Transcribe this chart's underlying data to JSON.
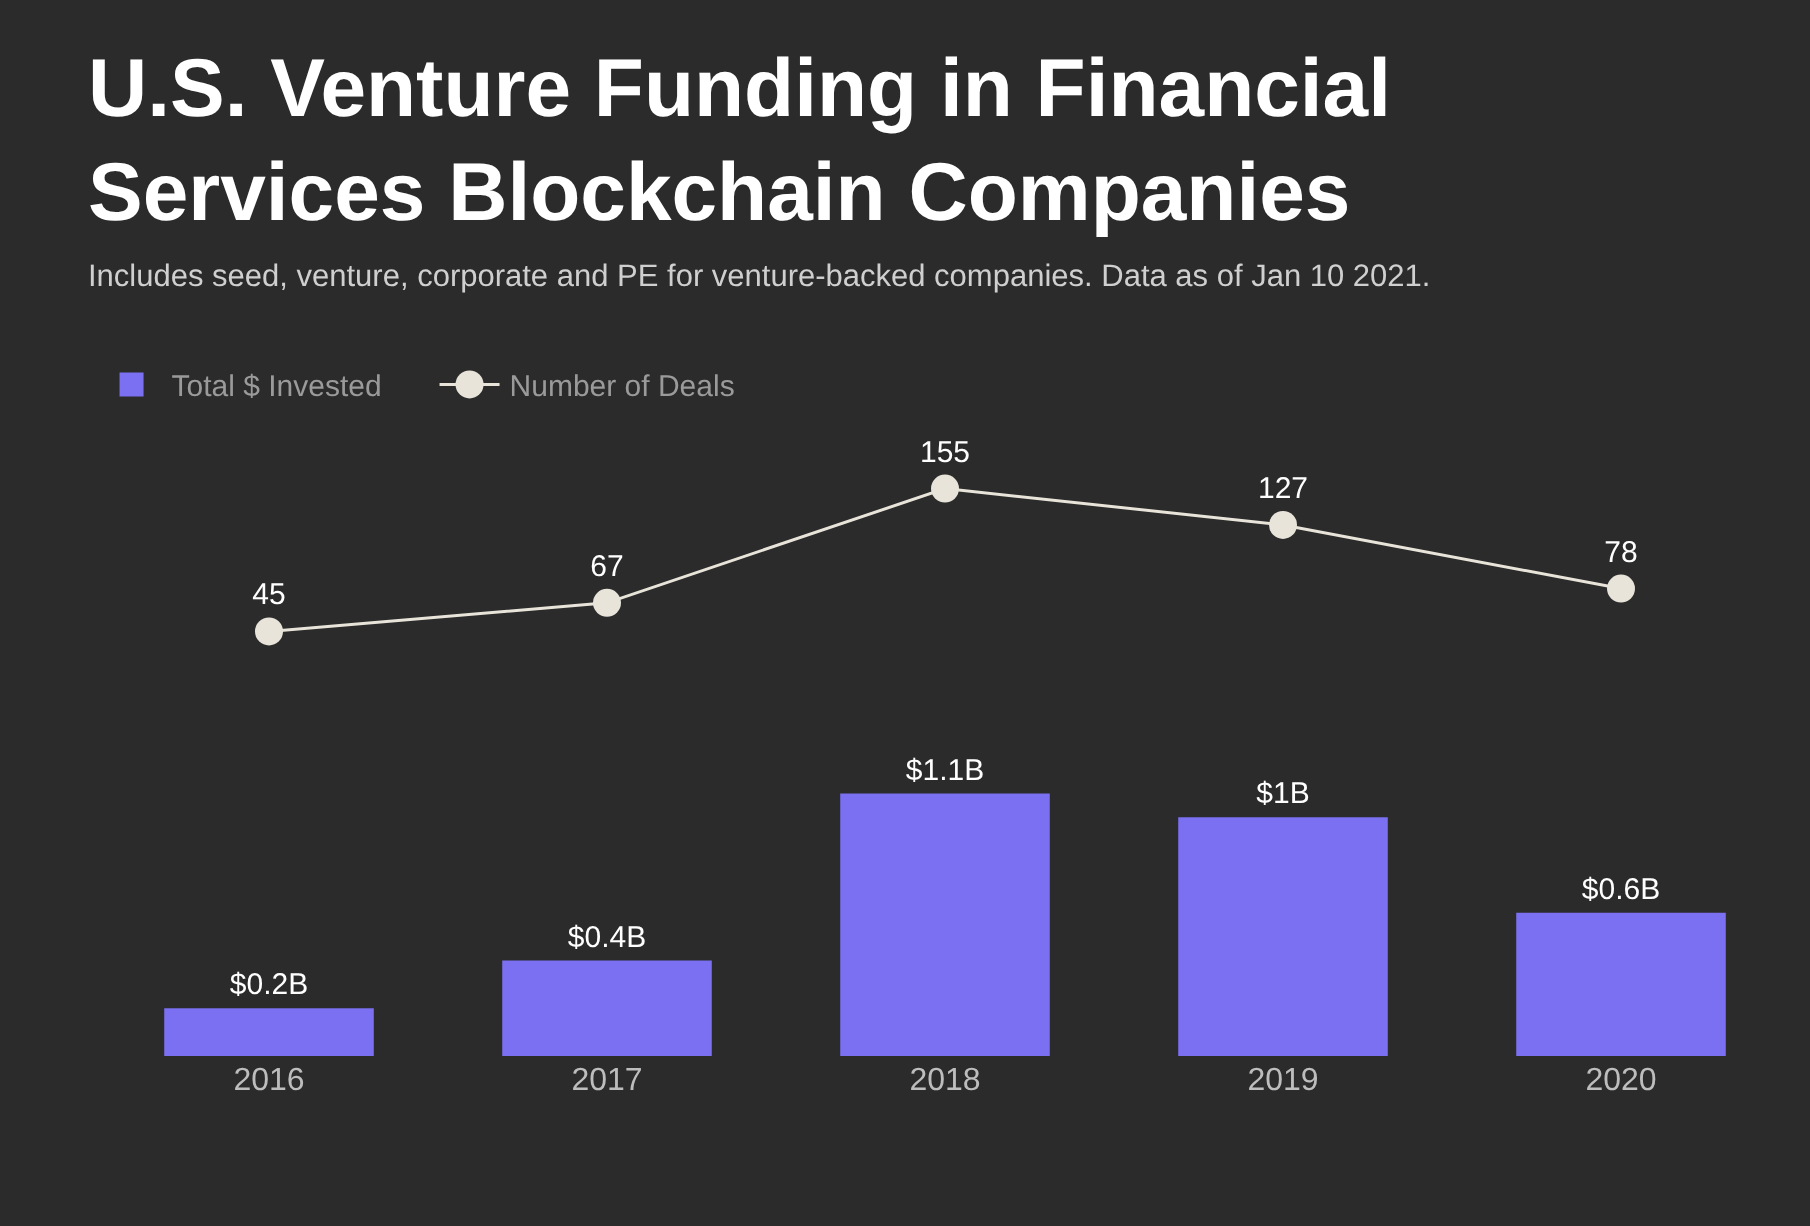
{
  "chart_data": [
    {
      "type": "line",
      "title": "U.S. Venture Funding in Financial Services Blockchain Companies",
      "subtitle": "Includes seed, venture, corporate and PE for venture-backed companies. Data as of Jan 10 2021.",
      "categories": [
        "2016",
        "2017",
        "2018",
        "2019",
        "2020"
      ],
      "series": [
        {
          "name": "Number of Deals",
          "color": "#e8e4da",
          "values": [
            45,
            67,
            155,
            127,
            78
          ]
        }
      ],
      "data_labels": true,
      "marker": "circle",
      "legend": "top left",
      "tick_labels": false
    },
    {
      "type": "bar",
      "categories": [
        "2016",
        "2017",
        "2018",
        "2019",
        "2020"
      ],
      "series": [
        {
          "name": "Total $ Invested",
          "color": "#7b70f2",
          "values": [
            0.2,
            0.4,
            1.1,
            1,
            0.6
          ],
          "value_labels": [
            "$0.2B",
            "$0.4B",
            "$1.1B",
            "$1B",
            "$0.6B"
          ]
        }
      ],
      "legend": "top left",
      "tick_labels": "x"
    }
  ]
}
